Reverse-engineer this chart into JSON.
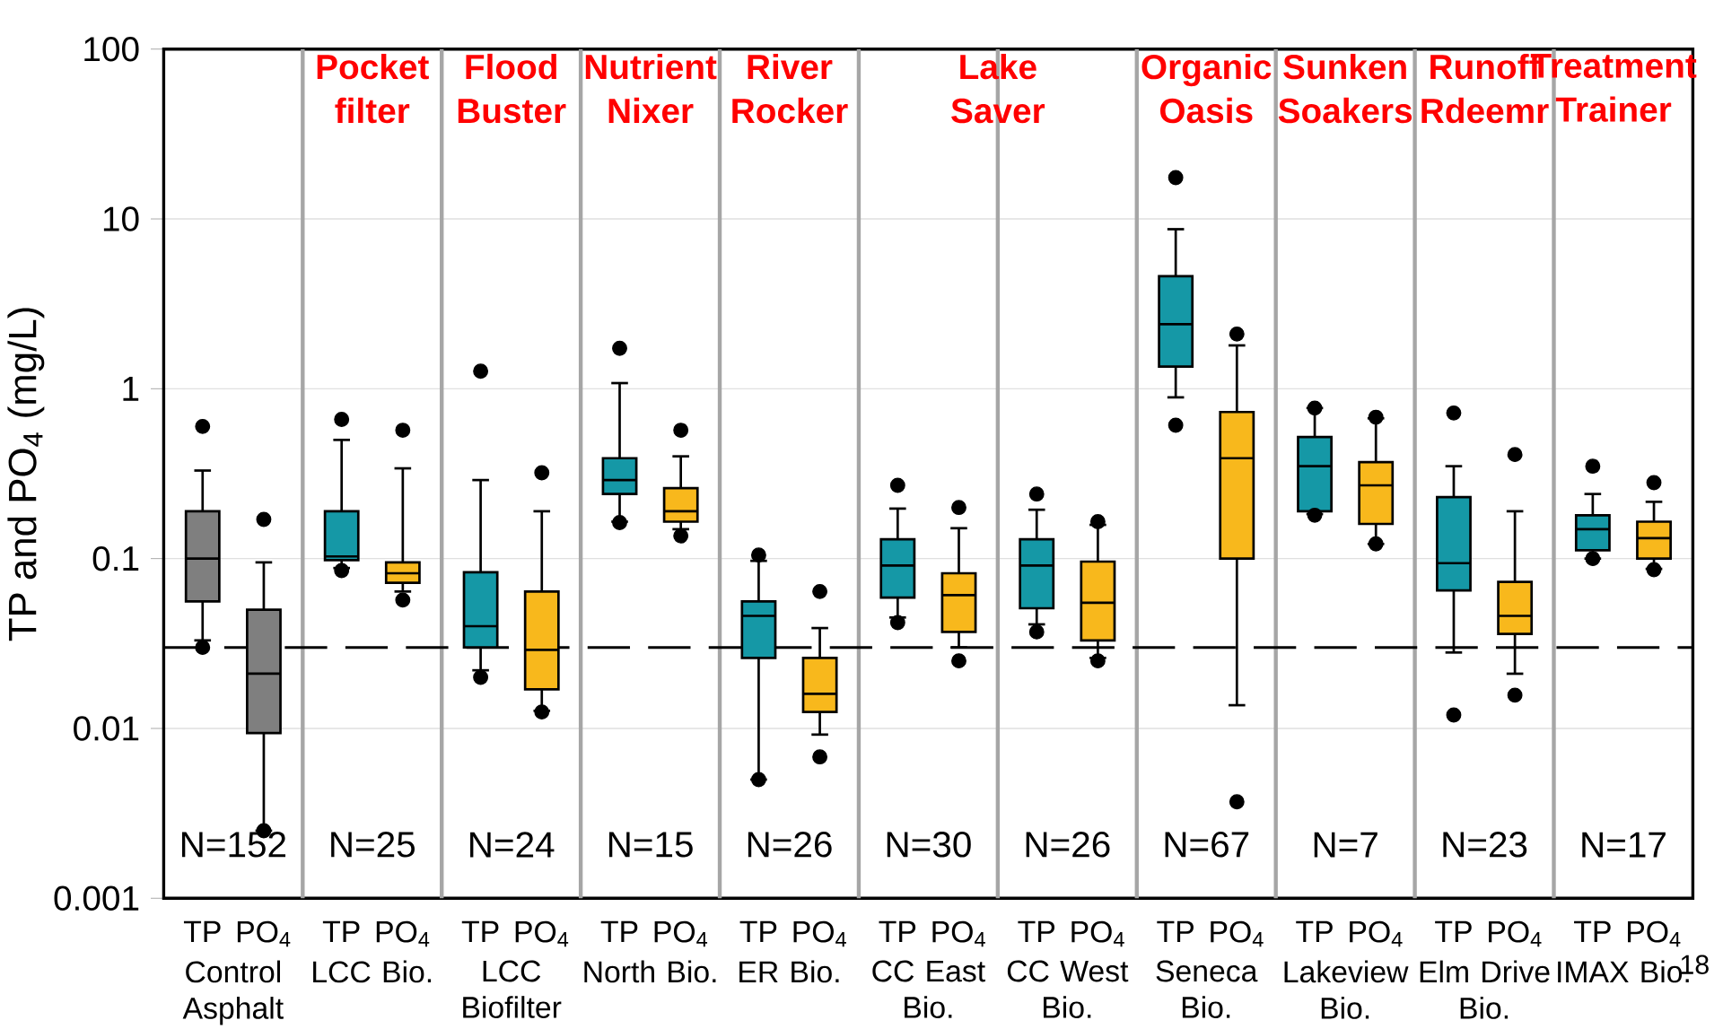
{
  "chart_data": {
    "type": "box",
    "ylabel": "TP and PO$_{4}$ (mg/L)",
    "categories": [
      "Control Asphalt",
      "LCC Bio.",
      "LCC Biofilter",
      "North Bio.",
      "ER Bio.",
      "CC East Bio.",
      "CC West Bio.",
      "Seneca Bio.",
      "Lakeview Bio.",
      "Elm Drive Bio.",
      "IMAX Bio."
    ],
    "series": [
      {
        "name": "TP",
        "colors": [
          "#7f7f7f",
          "#1598a6",
          "#1598a6",
          "#1598a6",
          "#1598a6",
          "#1598a6",
          "#1598a6",
          "#1598a6",
          "#1598a6",
          "#1598a6",
          "#1598a6"
        ],
        "boxes": [
          {
            "low": 0.033,
            "q1": 0.056,
            "median": 0.1,
            "q3": 0.19,
            "high": 0.33,
            "outliers": [
              0.6,
              0.03
            ]
          },
          {
            "low": 0.088,
            "q1": 0.098,
            "median": 0.103,
            "q3": 0.19,
            "high": 0.5,
            "outliers": [
              0.66,
              0.085
            ]
          },
          {
            "low": 0.022,
            "q1": 0.03,
            "median": 0.04,
            "q3": 0.083,
            "high": 0.29,
            "outliers": [
              1.27,
              0.02
            ]
          },
          {
            "low": 0.165,
            "q1": 0.24,
            "median": 0.29,
            "q3": 0.39,
            "high": 1.08,
            "outliers": [
              1.73,
              0.163
            ]
          },
          {
            "low": 0.005,
            "q1": 0.026,
            "median": 0.046,
            "q3": 0.056,
            "high": 0.097,
            "outliers": [
              0.105,
              0.005
            ]
          },
          {
            "low": 0.045,
            "q1": 0.059,
            "median": 0.091,
            "q3": 0.13,
            "high": 0.197,
            "outliers": [
              0.27,
              0.042
            ]
          },
          {
            "low": 0.041,
            "q1": 0.051,
            "median": 0.091,
            "q3": 0.13,
            "high": 0.194,
            "outliers": [
              0.24,
              0.037
            ]
          },
          {
            "low": 0.89,
            "q1": 1.35,
            "median": 2.4,
            "q3": 4.6,
            "high": 8.7,
            "outliers": [
              17.5,
              0.61
            ]
          },
          {
            "low": 0.183,
            "q1": 0.19,
            "median": 0.35,
            "q3": 0.52,
            "high": 0.77,
            "outliers": [
              0.77,
              0.18
            ]
          },
          {
            "low": 0.028,
            "q1": 0.065,
            "median": 0.094,
            "q3": 0.23,
            "high": 0.35,
            "outliers": [
              0.72,
              0.012
            ]
          },
          {
            "low": 0.1,
            "q1": 0.112,
            "median": 0.149,
            "q3": 0.18,
            "high": 0.24,
            "outliers": [
              0.35,
              0.1
            ]
          }
        ]
      },
      {
        "name": "PO$_{4}$",
        "colors": [
          "#7f7f7f",
          "#f8b81c",
          "#f8b81c",
          "#f8b81c",
          "#f8b81c",
          "#f8b81c",
          "#f8b81c",
          "#f8b81c",
          "#f8b81c",
          "#f8b81c",
          "#f8b81c"
        ],
        "boxes": [
          {
            "low": 0.0025,
            "q1": 0.0094,
            "median": 0.021,
            "q3": 0.05,
            "high": 0.095,
            "outliers": [
              0.17,
              0.0025
            ]
          },
          {
            "low": 0.064,
            "q1": 0.072,
            "median": 0.082,
            "q3": 0.095,
            "high": 0.34,
            "outliers": [
              0.57,
              0.057
            ]
          },
          {
            "low": 0.0127,
            "q1": 0.017,
            "median": 0.029,
            "q3": 0.064,
            "high": 0.19,
            "outliers": [
              0.32,
              0.0125
            ]
          },
          {
            "low": 0.149,
            "q1": 0.165,
            "median": 0.19,
            "q3": 0.26,
            "high": 0.4,
            "outliers": [
              0.57,
              0.136
            ]
          },
          {
            "low": 0.0092,
            "q1": 0.0125,
            "median": 0.016,
            "q3": 0.026,
            "high": 0.039,
            "outliers": [
              0.064,
              0.0068
            ]
          },
          {
            "low": 0.03,
            "q1": 0.037,
            "median": 0.061,
            "q3": 0.082,
            "high": 0.151,
            "outliers": [
              0.2,
              0.025
            ]
          },
          {
            "low": 0.026,
            "q1": 0.033,
            "median": 0.055,
            "q3": 0.096,
            "high": 0.158,
            "outliers": [
              0.165,
              0.025
            ]
          },
          {
            "low": 0.0137,
            "q1": 0.1,
            "median": 0.39,
            "q3": 0.73,
            "high": 1.8,
            "outliers": [
              2.1,
              0.0037
            ]
          },
          {
            "low": 0.122,
            "q1": 0.16,
            "median": 0.27,
            "q3": 0.37,
            "high": 0.67,
            "outliers": [
              0.68,
              0.122
            ]
          },
          {
            "low": 0.021,
            "q1": 0.036,
            "median": 0.046,
            "q3": 0.073,
            "high": 0.19,
            "outliers": [
              0.41,
              0.0157
            ]
          },
          {
            "low": 0.087,
            "q1": 0.1,
            "median": 0.132,
            "q3": 0.165,
            "high": 0.216,
            "outliers": [
              0.28,
              0.086
            ]
          }
        ]
      }
    ],
    "log": true,
    "ylim": [
      0.001,
      100
    ],
    "yticks": [
      0.001,
      0.01,
      0.1,
      1,
      10,
      100
    ],
    "grid": "y",
    "ref_lines": [
      {
        "axis": "y",
        "value": 0.03,
        "color": "#000000",
        "line_style": "dashed"
      }
    ],
    "annotations": [
      "Pocket filter",
      "Flood Buster",
      "Nutrient Nixer",
      "River Rocker",
      "Lake Saver",
      "Organic Oasis",
      "Sunken Soakers",
      "Runoff Rdeemr",
      "Treatment Trainer",
      "N=152",
      "N=25",
      "N=24",
      "N=15",
      "N=26",
      "N=30",
      "N=26",
      "N=67",
      "N=7",
      "N=23",
      "N=17",
      "18"
    ]
  }
}
